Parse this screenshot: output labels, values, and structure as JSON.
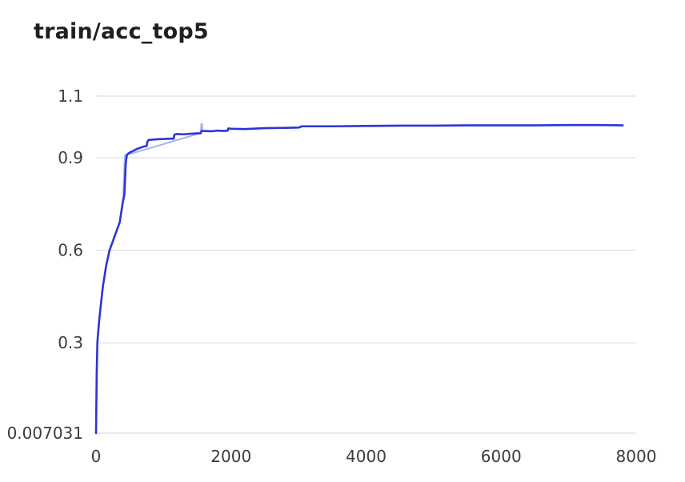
{
  "chart_data": {
    "type": "line",
    "title": "train/acc_top5",
    "xlim": [
      0,
      8000
    ],
    "ylim": [
      0.007031,
      1.1
    ],
    "xticks": [
      0,
      2000,
      4000,
      6000,
      8000
    ],
    "xtick_labels": [
      "0",
      "2000",
      "4000",
      "6000",
      "8000"
    ],
    "yticks": [
      0.007031,
      0.3,
      0.6,
      0.9,
      1.1
    ],
    "ytick_labels": [
      "0.007031",
      "0.3",
      "0.6",
      "0.9",
      "1.1"
    ],
    "grid": true,
    "colors": {
      "smoothed": "#2b35d8",
      "raw": "#aab0ee",
      "grid": "#d9d9d9"
    },
    "series": [
      {
        "role": "smoothed",
        "x": [
          0,
          5,
          10,
          20,
          30,
          50,
          80,
          100,
          150,
          200,
          250,
          300,
          350,
          400,
          420,
          430,
          440,
          450,
          460,
          480,
          500,
          550,
          600,
          650,
          700,
          750,
          760,
          780,
          800,
          900,
          1000,
          1100,
          1150,
          1160,
          1200,
          1300,
          1400,
          1500,
          1550,
          1560,
          1580,
          1600,
          1700,
          1800,
          1900,
          1950,
          1960,
          2000,
          2200,
          2500,
          2800,
          3000,
          3050,
          3500,
          4000,
          4500,
          5000,
          5500,
          6000,
          6500,
          7000,
          7500,
          7800
        ],
        "y": [
          0.007,
          0.1,
          0.2,
          0.3,
          0.33,
          0.38,
          0.44,
          0.48,
          0.55,
          0.6,
          0.63,
          0.66,
          0.69,
          0.76,
          0.78,
          0.83,
          0.88,
          0.9,
          0.91,
          0.914,
          0.917,
          0.922,
          0.928,
          0.932,
          0.936,
          0.938,
          0.952,
          0.958,
          0.958,
          0.96,
          0.961,
          0.962,
          0.962,
          0.975,
          0.977,
          0.976,
          0.978,
          0.979,
          0.979,
          0.986,
          0.987,
          0.987,
          0.986,
          0.988,
          0.987,
          0.988,
          0.995,
          0.994,
          0.993,
          0.996,
          0.997,
          0.998,
          1.002,
          1.002,
          1.003,
          1.004,
          1.004,
          1.005,
          1.005,
          1.005,
          1.006,
          1.006,
          1.005
        ]
      },
      {
        "role": "raw",
        "x": [
          400,
          410,
          420,
          430,
          440,
          450,
          470,
          1550,
          1560,
          1570,
          1580
        ],
        "y": [
          0.76,
          0.82,
          0.88,
          0.91,
          0.9,
          0.905,
          0.91,
          0.98,
          1.01,
          1.01,
          0.986
        ]
      }
    ]
  }
}
